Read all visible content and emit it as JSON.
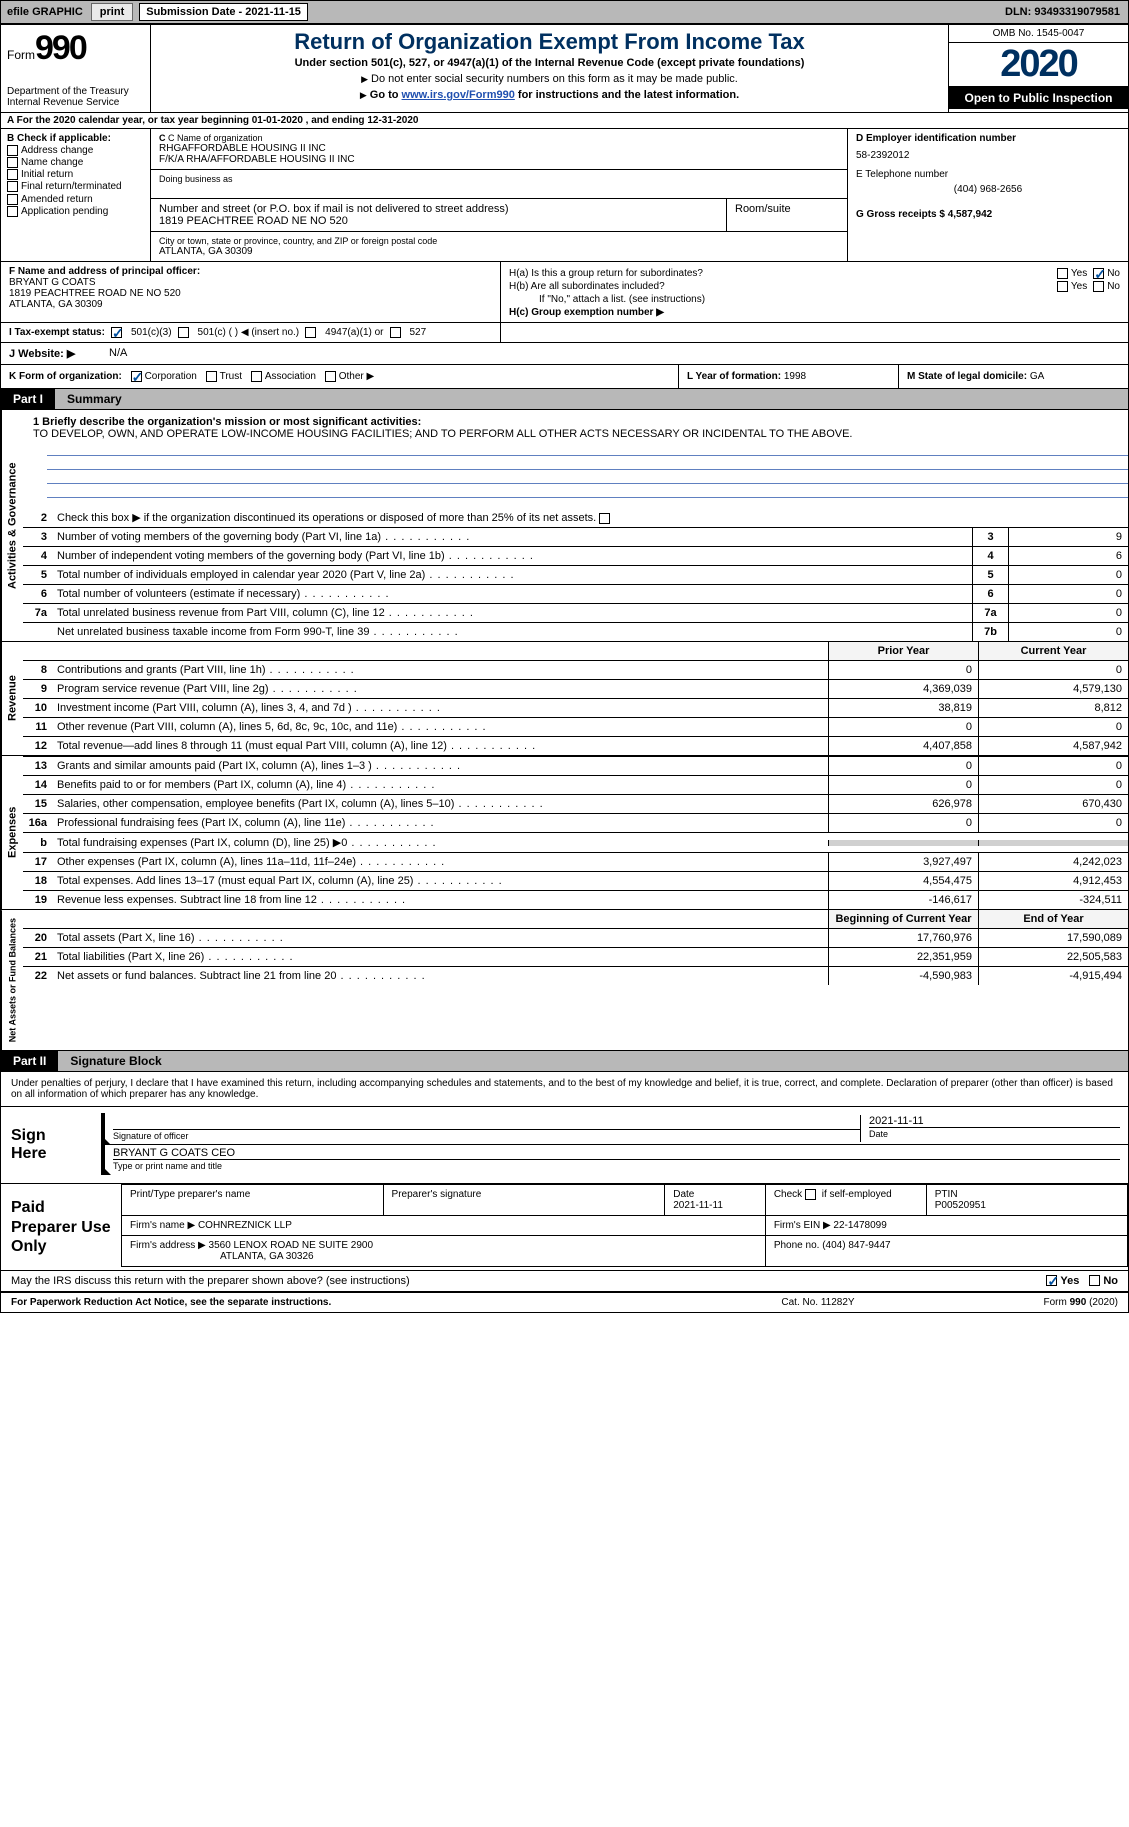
{
  "topbar": {
    "efile": "efile GRAPHIC",
    "print": "print",
    "submission_label": "Submission Date - 2021-11-15",
    "dln": "DLN: 93493319079581"
  },
  "header": {
    "form_word": "Form",
    "form_num": "990",
    "dept": "Department of the Treasury\nInternal Revenue Service",
    "title": "Return of Organization Exempt From Income Tax",
    "subtitle": "Under section 501(c), 527, or 4947(a)(1) of the Internal Revenue Code (except private foundations)",
    "instr1": "Do not enter social security numbers on this form as it may be made public.",
    "instr2_pre": "Go to ",
    "instr2_link": "www.irs.gov/Form990",
    "instr2_post": " for instructions and the latest information.",
    "omb": "OMB No. 1545-0047",
    "year": "2020",
    "open": "Open to Public Inspection"
  },
  "rowA": "A For the 2020 calendar year, or tax year beginning 01-01-2020    , and ending 12-31-2020",
  "boxB": {
    "label": "B Check if applicable:",
    "opts": [
      "Address change",
      "Name change",
      "Initial return",
      "Final return/terminated",
      "Amended return",
      "Application pending"
    ]
  },
  "boxC": {
    "name_label": "C Name of organization",
    "name1": "RHGAFFORDABLE HOUSING II INC",
    "name2": "F/K/A RHA/AFFORDABLE HOUSING II INC",
    "dba_label": "Doing business as",
    "street_label": "Number and street (or P.O. box if mail is not delivered to street address)",
    "room_label": "Room/suite",
    "street": "1819 PEACHTREE ROAD NE NO 520",
    "city_label": "City or town, state or province, country, and ZIP or foreign postal code",
    "city": "ATLANTA, GA  30309"
  },
  "boxD": {
    "ein_label": "D Employer identification number",
    "ein": "58-2392012",
    "tel_label": "E Telephone number",
    "tel": "(404) 968-2656",
    "gross_label": "G Gross receipts $",
    "gross": "4,587,942"
  },
  "boxF": {
    "label": "F  Name and address of principal officer:",
    "name": "BRYANT G COATS",
    "addr1": "1819 PEACHTREE ROAD NE NO 520",
    "addr2": "ATLANTA, GA  30309"
  },
  "boxH": {
    "a_q": "H(a)  Is this a group return for subordinates?",
    "b_q": "H(b)  Are all subordinates included?",
    "b_note": "If \"No,\" attach a list. (see instructions)",
    "c_q": "H(c)  Group exemption number ▶",
    "yes": "Yes",
    "no": "No"
  },
  "boxI": {
    "label": "I  Tax-exempt status:",
    "o1": "501(c)(3)",
    "o2": "501(c) (  ) ◀ (insert no.)",
    "o3": "4947(a)(1) or",
    "o4": "527"
  },
  "boxJ": {
    "label": "J  Website: ▶",
    "val": "N/A"
  },
  "boxK": {
    "label": "K Form of organization:",
    "opts": [
      "Corporation",
      "Trust",
      "Association",
      "Other ▶"
    ]
  },
  "boxL": {
    "label": "L Year of formation:",
    "val": "1998"
  },
  "boxM": {
    "label": "M State of legal domicile:",
    "val": "GA"
  },
  "part1": {
    "pt": "Part I",
    "name": "Summary"
  },
  "gov": {
    "side": "Activities & Governance",
    "q1_label": "1  Briefly describe the organization's mission or most significant activities:",
    "q1_text": "TO DEVELOP, OWN, AND OPERATE LOW-INCOME HOUSING FACILITIES; AND TO PERFORM ALL OTHER ACTS NECESSARY OR INCIDENTAL TO THE ABOVE.",
    "q2": "Check this box ▶       if the organization discontinued its operations or disposed of more than 25% of its net assets.",
    "rows": [
      {
        "n": "3",
        "t": "Number of voting members of the governing body (Part VI, line 1a)",
        "box": "3",
        "v": "9"
      },
      {
        "n": "4",
        "t": "Number of independent voting members of the governing body (Part VI, line 1b)",
        "box": "4",
        "v": "6"
      },
      {
        "n": "5",
        "t": "Total number of individuals employed in calendar year 2020 (Part V, line 2a)",
        "box": "5",
        "v": "0"
      },
      {
        "n": "6",
        "t": "Total number of volunteers (estimate if necessary)",
        "box": "6",
        "v": "0"
      },
      {
        "n": "7a",
        "t": "Total unrelated business revenue from Part VIII, column (C), line 12",
        "box": "7a",
        "v": "0"
      },
      {
        "n": "",
        "t": "Net unrelated business taxable income from Form 990-T, line 39",
        "box": "7b",
        "v": "0"
      }
    ]
  },
  "cols": {
    "prior": "Prior Year",
    "current": "Current Year",
    "boy": "Beginning of Current Year",
    "eoy": "End of Year"
  },
  "rev": {
    "side": "Revenue",
    "rows": [
      {
        "n": "8",
        "t": "Contributions and grants (Part VIII, line 1h)",
        "p": "0",
        "c": "0"
      },
      {
        "n": "9",
        "t": "Program service revenue (Part VIII, line 2g)",
        "p": "4,369,039",
        "c": "4,579,130"
      },
      {
        "n": "10",
        "t": "Investment income (Part VIII, column (A), lines 3, 4, and 7d )",
        "p": "38,819",
        "c": "8,812"
      },
      {
        "n": "11",
        "t": "Other revenue (Part VIII, column (A), lines 5, 6d, 8c, 9c, 10c, and 11e)",
        "p": "0",
        "c": "0"
      },
      {
        "n": "12",
        "t": "Total revenue—add lines 8 through 11 (must equal Part VIII, column (A), line 12)",
        "p": "4,407,858",
        "c": "4,587,942"
      }
    ]
  },
  "exp": {
    "side": "Expenses",
    "rows": [
      {
        "n": "13",
        "t": "Grants and similar amounts paid (Part IX, column (A), lines 1–3 )",
        "p": "0",
        "c": "0"
      },
      {
        "n": "14",
        "t": "Benefits paid to or for members (Part IX, column (A), line 4)",
        "p": "0",
        "c": "0"
      },
      {
        "n": "15",
        "t": "Salaries, other compensation, employee benefits (Part IX, column (A), lines 5–10)",
        "p": "626,978",
        "c": "670,430"
      },
      {
        "n": "16a",
        "t": "Professional fundraising fees (Part IX, column (A), line 11e)",
        "p": "0",
        "c": "0"
      },
      {
        "n": "b",
        "t": "Total fundraising expenses (Part IX, column (D), line 25) ▶0",
        "p": "",
        "c": "",
        "gray": true
      },
      {
        "n": "17",
        "t": "Other expenses (Part IX, column (A), lines 11a–11d, 11f–24e)",
        "p": "3,927,497",
        "c": "4,242,023"
      },
      {
        "n": "18",
        "t": "Total expenses. Add lines 13–17 (must equal Part IX, column (A), line 25)",
        "p": "4,554,475",
        "c": "4,912,453"
      },
      {
        "n": "19",
        "t": "Revenue less expenses. Subtract line 18 from line 12",
        "p": "-146,617",
        "c": "-324,511"
      }
    ]
  },
  "net": {
    "side": "Net Assets or Fund Balances",
    "rows": [
      {
        "n": "20",
        "t": "Total assets (Part X, line 16)",
        "p": "17,760,976",
        "c": "17,590,089"
      },
      {
        "n": "21",
        "t": "Total liabilities (Part X, line 26)",
        "p": "22,351,959",
        "c": "22,505,583"
      },
      {
        "n": "22",
        "t": "Net assets or fund balances. Subtract line 21 from line 20",
        "p": "-4,590,983",
        "c": "-4,915,494"
      }
    ]
  },
  "part2": {
    "pt": "Part II",
    "name": "Signature Block"
  },
  "sig_intro": "Under penalties of perjury, I declare that I have examined this return, including accompanying schedules and statements, and to the best of my knowledge and belief, it is true, correct, and complete. Declaration of preparer (other than officer) is based on all information of which preparer has any knowledge.",
  "sign": {
    "label": "Sign Here",
    "sig_label": "Signature of officer",
    "date": "2021-11-11",
    "date_label": "Date",
    "name": "BRYANT G COATS CEO",
    "name_label": "Type or print name and title"
  },
  "paid": {
    "label": "Paid Preparer Use Only",
    "h_name": "Print/Type preparer's name",
    "h_sig": "Preparer's signature",
    "h_date": "Date",
    "date": "2021-11-11",
    "h_check": "Check         if self-employed",
    "h_ptin": "PTIN",
    "ptin": "P00520951",
    "firm_name_l": "Firm's name     ▶",
    "firm_name": "COHNREZNICK LLP",
    "firm_ein_l": "Firm's EIN ▶",
    "firm_ein": "22-1478099",
    "firm_addr_l": "Firm's address ▶",
    "firm_addr1": "3560 LENOX ROAD NE SUITE 2900",
    "firm_addr2": "ATLANTA, GA  30326",
    "phone_l": "Phone no.",
    "phone": "(404) 847-9447"
  },
  "may": {
    "q": "May the IRS discuss this return with the preparer shown above? (see instructions)",
    "yes": "Yes",
    "no": "No"
  },
  "footer": {
    "l": "For Paperwork Reduction Act Notice, see the separate instructions.",
    "m": "Cat. No. 11282Y",
    "r": "Form 990 (2020)"
  }
}
